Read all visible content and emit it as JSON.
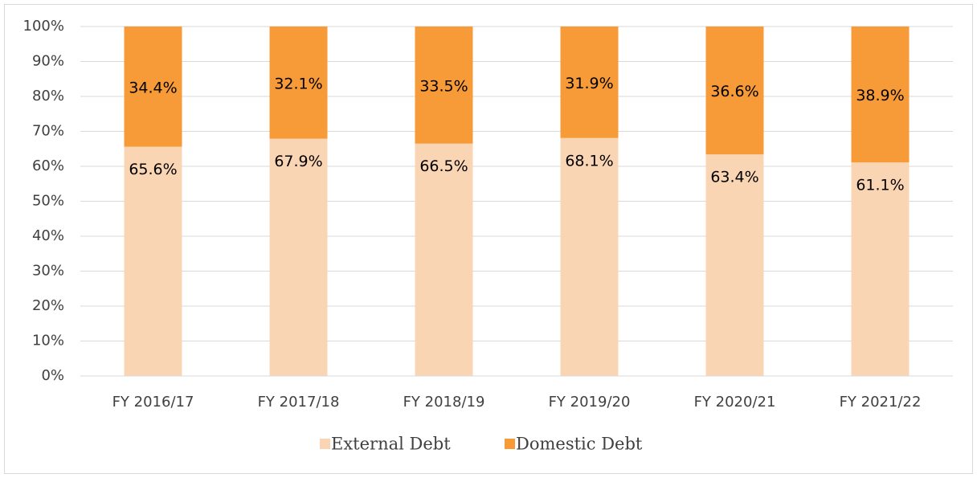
{
  "chart_data": {
    "type": "stacked_bar",
    "categories": [
      "FY 2016/17",
      "FY 2017/18",
      "FY 2018/19",
      "FY 2019/20",
      "FY 2020/21",
      "FY 2021/22"
    ],
    "series": [
      {
        "name": "External Debt",
        "color": "#fad5b4",
        "values": [
          65.6,
          67.9,
          66.5,
          68.1,
          63.4,
          61.1
        ],
        "value_labels": [
          "65.6%",
          "67.9%",
          "66.5%",
          "68.1%",
          "63.4%",
          "61.1%"
        ]
      },
      {
        "name": "Domestic Debt",
        "color": "#f79a38",
        "values": [
          34.4,
          32.1,
          33.5,
          31.9,
          36.6,
          38.9
        ],
        "value_labels": [
          "34.4%",
          "32.1%",
          "33.5%",
          "31.9%",
          "36.6%",
          "38.9%"
        ]
      }
    ],
    "ylim": [
      0,
      100
    ],
    "yticks": [
      {
        "value": 0,
        "label": "0%"
      },
      {
        "value": 10,
        "label": "10%"
      },
      {
        "value": 20,
        "label": "20%"
      },
      {
        "value": 30,
        "label": "30%"
      },
      {
        "value": 40,
        "label": "40%"
      },
      {
        "value": 50,
        "label": "50%"
      },
      {
        "value": 60,
        "label": "60%"
      },
      {
        "value": 70,
        "label": "70%"
      },
      {
        "value": 80,
        "label": "80%"
      },
      {
        "value": 90,
        "label": "90%"
      },
      {
        "value": 100,
        "label": "100%"
      }
    ],
    "grid": true,
    "legend": "bottom"
  }
}
